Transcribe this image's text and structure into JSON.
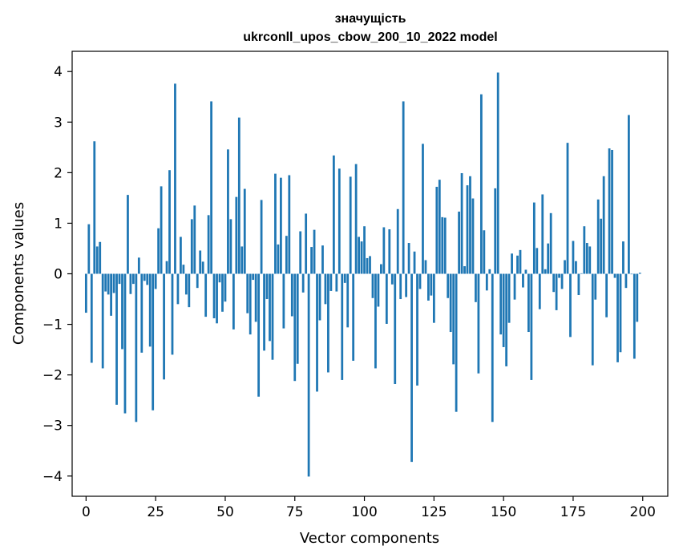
{
  "chart_data": {
    "type": "bar",
    "title_line1": "значущість",
    "title_line2": "ukrconll_upos_cbow_200_10_2022 model",
    "xlabel": "Vector components",
    "ylabel": "Components values",
    "xlim": [
      -5,
      209
    ],
    "ylim": [
      -4.4,
      4.4
    ],
    "xticks": [
      0,
      25,
      50,
      75,
      100,
      125,
      150,
      175,
      200
    ],
    "yticks": [
      -4,
      -3,
      -2,
      -1,
      0,
      1,
      2,
      3,
      4
    ],
    "bar_color": "#1f77b4",
    "x": [
      0,
      1,
      2,
      3,
      4,
      5,
      6,
      7,
      8,
      9,
      10,
      11,
      12,
      13,
      14,
      15,
      16,
      17,
      18,
      19,
      20,
      21,
      22,
      23,
      24,
      25,
      26,
      27,
      28,
      29,
      30,
      31,
      32,
      33,
      34,
      35,
      36,
      37,
      38,
      39,
      40,
      41,
      42,
      43,
      44,
      45,
      46,
      47,
      48,
      49,
      50,
      51,
      52,
      53,
      54,
      55,
      56,
      57,
      58,
      59,
      60,
      61,
      62,
      63,
      64,
      65,
      66,
      67,
      68,
      69,
      70,
      71,
      72,
      73,
      74,
      75,
      76,
      77,
      78,
      79,
      80,
      81,
      82,
      83,
      84,
      85,
      86,
      87,
      88,
      89,
      90,
      91,
      92,
      93,
      94,
      95,
      96,
      97,
      98,
      99,
      100,
      101,
      102,
      103,
      104,
      105,
      106,
      107,
      108,
      109,
      110,
      111,
      112,
      113,
      114,
      115,
      116,
      117,
      118,
      119,
      120,
      121,
      122,
      123,
      124,
      125,
      126,
      127,
      128,
      129,
      130,
      131,
      132,
      133,
      134,
      135,
      136,
      137,
      138,
      139,
      140,
      141,
      142,
      143,
      144,
      145,
      146,
      147,
      148,
      149,
      150,
      151,
      152,
      153,
      154,
      155,
      156,
      157,
      158,
      159,
      160,
      161,
      162,
      163,
      164,
      165,
      166,
      167,
      168,
      169,
      170,
      171,
      172,
      173,
      174,
      175,
      176,
      177,
      178,
      179,
      180,
      181,
      182,
      183,
      184,
      185,
      186,
      187,
      188,
      189,
      190,
      191,
      192,
      193,
      194,
      195,
      196,
      197,
      198,
      199
    ],
    "values": [
      -0.77,
      0.98,
      -1.76,
      2.62,
      0.54,
      0.63,
      -1.87,
      -0.35,
      -0.41,
      -0.83,
      -0.38,
      -2.59,
      -0.2,
      -1.49,
      -2.76,
      1.56,
      -0.4,
      -0.2,
      -2.93,
      0.32,
      -1.56,
      -0.14,
      -0.22,
      -1.44,
      -2.7,
      -0.3,
      0.9,
      1.73,
      -2.09,
      0.25,
      2.05,
      -1.6,
      3.76,
      -0.6,
      0.73,
      0.18,
      -0.41,
      -0.66,
      1.08,
      1.35,
      -0.28,
      0.46,
      0.24,
      -0.85,
      1.16,
      3.41,
      -0.88,
      -0.98,
      -0.17,
      -0.75,
      -0.55,
      2.46,
      1.08,
      -1.1,
      1.52,
      3.09,
      0.54,
      1.68,
      -0.78,
      -1.2,
      -0.12,
      -0.95,
      -2.43,
      1.46,
      -1.52,
      -0.5,
      -1.33,
      -1.7,
      1.98,
      0.58,
      1.9,
      -1.08,
      0.75,
      1.95,
      -0.84,
      -2.12,
      -1.78,
      0.84,
      -0.37,
      1.19,
      -4.01,
      0.53,
      0.87,
      -2.33,
      -0.92,
      0.56,
      -0.6,
      -1.95,
      -0.34,
      2.34,
      -0.35,
      2.08,
      -2.1,
      -0.18,
      -1.06,
      1.92,
      -1.72,
      2.17,
      0.73,
      0.64,
      0.94,
      0.31,
      0.35,
      -0.48,
      -1.87,
      -0.65,
      0.19,
      0.92,
      -0.99,
      0.88,
      -0.21,
      -2.18,
      1.28,
      -0.5,
      3.41,
      -0.46,
      0.61,
      -3.72,
      0.44,
      -2.21,
      -0.3,
      2.57,
      0.27,
      -0.53,
      -0.43,
      -0.97,
      1.72,
      1.86,
      1.12,
      1.11,
      -0.48,
      -1.15,
      -1.79,
      -2.73,
      1.23,
      1.99,
      0.15,
      1.75,
      1.93,
      1.49,
      -0.56,
      -1.97,
      3.55,
      0.86,
      -0.33,
      0.09,
      -2.93,
      1.69,
      3.98,
      -1.2,
      -1.45,
      -1.83,
      -0.97,
      0.4,
      -0.51,
      0.36,
      0.47,
      -0.27,
      0.08,
      -1.15,
      -2.1,
      1.41,
      0.51,
      -0.7,
      1.57,
      0.09,
      0.6,
      1.2,
      -0.36,
      -0.72,
      -0.08,
      -0.3,
      0.27,
      2.59,
      -1.25,
      0.65,
      0.25,
      -0.42,
      0.01,
      0.94,
      0.61,
      0.54,
      -1.81,
      -0.51,
      1.47,
      1.09,
      1.93,
      -0.86,
      2.48,
      2.45,
      -0.08,
      -1.75,
      -1.55,
      0.64,
      -0.28,
      3.14,
      -0.01,
      -1.68,
      -0.95,
      0.02
    ]
  }
}
